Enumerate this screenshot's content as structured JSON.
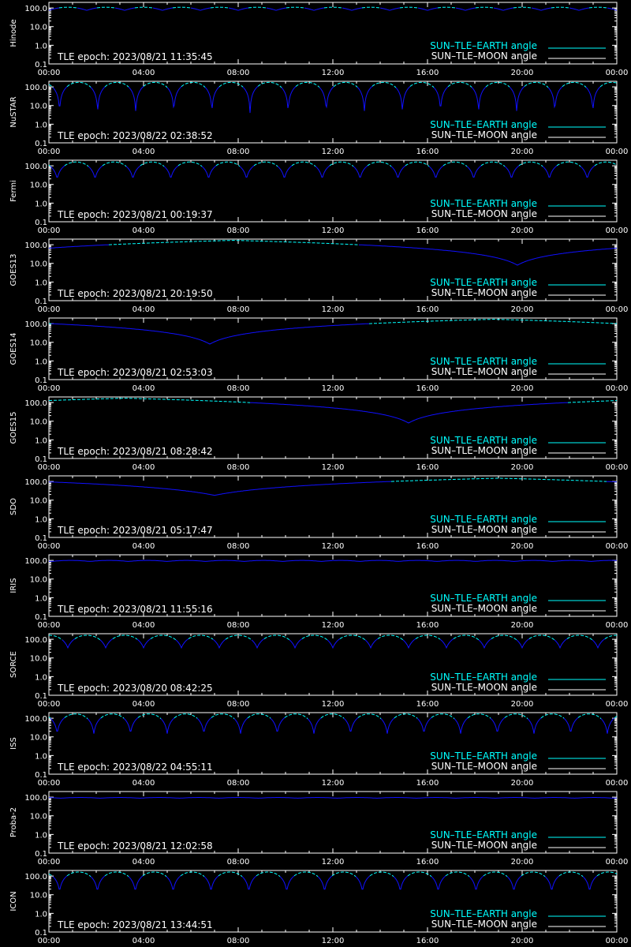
{
  "chart_data": [
    {
      "type": "line",
      "satellite": "Hinode",
      "epoch_text": "TLE epoch: 2023/08/21 11:35:45",
      "pattern": "periodic",
      "period_hours": 1.6,
      "phase_hours": 0.0,
      "min": 75,
      "max": 110,
      "xlabels": [
        "00:00",
        "04:00",
        "08:00",
        "12:00",
        "16:00",
        "20:00",
        "00:00"
      ],
      "yticks": [
        "100.0",
        "10.0",
        "1.0",
        "0.1"
      ],
      "legend": [
        "SUN–TLE–EARTH angle",
        "SUN–TLE–MOON angle"
      ]
    },
    {
      "type": "line",
      "satellite": "NuSTAR",
      "epoch_text": "TLE epoch: 2023/08/22 02:38:52",
      "pattern": "periodic",
      "period_hours": 1.61,
      "phase_hours": 0.45,
      "min": 4,
      "max": 175,
      "xlabels": [
        "00:00",
        "04:00",
        "08:00",
        "12:00",
        "16:00",
        "20:00",
        "00:00"
      ],
      "yticks": [
        "100.0",
        "10.0",
        "1.0",
        "0.1"
      ],
      "legend": [
        "SUN–TLE–EARTH angle",
        "SUN–TLE–MOON angle"
      ]
    },
    {
      "type": "line",
      "satellite": "Fermi",
      "epoch_text": "TLE epoch: 2023/08/21 00:19:37",
      "pattern": "periodic",
      "period_hours": 1.6,
      "phase_hours": 0.35,
      "min": 20,
      "max": 160,
      "xlabels": [
        "00:00",
        "04:00",
        "08:00",
        "12:00",
        "16:00",
        "20:00",
        "00:00"
      ],
      "yticks": [
        "100.0",
        "10.0",
        "1.0",
        "0.1"
      ],
      "legend": [
        "SUN–TLE–EARTH angle",
        "SUN–TLE–MOON angle"
      ]
    },
    {
      "type": "line",
      "satellite": "GOES13",
      "epoch_text": "TLE epoch: 2023/08/21 20:19:50",
      "pattern": "geo",
      "min_time_hours": 19.8,
      "min": 8,
      "max": 172,
      "xlabels": [
        "00:00",
        "04:00",
        "08:00",
        "12:00",
        "16:00",
        "20:00",
        "00:00"
      ],
      "yticks": [
        "100.0",
        "10.0",
        "1.0",
        "0.1"
      ],
      "legend": [
        "SUN–TLE–EARTH angle",
        "SUN–TLE–MOON angle"
      ]
    },
    {
      "type": "line",
      "satellite": "GOES14",
      "epoch_text": "TLE epoch: 2023/08/21 02:53:03",
      "pattern": "geo",
      "min_time_hours": 6.8,
      "min": 8,
      "max": 172,
      "xlabels": [
        "00:00",
        "04:00",
        "08:00",
        "12:00",
        "16:00",
        "20:00",
        "00:00"
      ],
      "yticks": [
        "100.0",
        "10.0",
        "1.0",
        "0.1"
      ],
      "legend": [
        "SUN–TLE–EARTH angle",
        "SUN–TLE–MOON angle"
      ]
    },
    {
      "type": "line",
      "satellite": "GOES15",
      "epoch_text": "TLE epoch: 2023/08/21 08:28:42",
      "pattern": "geo",
      "min_time_hours": 15.2,
      "min": 8,
      "max": 172,
      "xlabels": [
        "00:00",
        "04:00",
        "08:00",
        "12:00",
        "16:00",
        "20:00",
        "00:00"
      ],
      "yticks": [
        "100.0",
        "10.0",
        "1.0",
        "0.1"
      ],
      "legend": [
        "SUN–TLE–EARTH angle",
        "SUN–TLE–MOON angle"
      ]
    },
    {
      "type": "line",
      "satellite": "SDO",
      "epoch_text": "TLE epoch: 2023/08/21 05:17:47",
      "pattern": "geo",
      "min_time_hours": 7.0,
      "min": 18,
      "max": 150,
      "xlabels": [
        "00:00",
        "04:00",
        "08:00",
        "12:00",
        "16:00",
        "20:00",
        "00:00"
      ],
      "yticks": [
        "100.0",
        "10.0",
        "1.0",
        "0.1"
      ],
      "legend": [
        "SUN–TLE–EARTH angle",
        "SUN–TLE–MOON angle"
      ]
    },
    {
      "type": "line",
      "satellite": "IRIS",
      "epoch_text": "TLE epoch: 2023/08/21 11:55:16",
      "pattern": "periodic",
      "period_hours": 1.63,
      "phase_hours": 0.1,
      "min": 88,
      "max": 100,
      "xlabels": [
        "00:00",
        "04:00",
        "08:00",
        "12:00",
        "16:00",
        "20:00",
        "00:00"
      ],
      "yticks": [
        "100.0",
        "10.0",
        "1.0",
        "0.1"
      ],
      "legend": [
        "SUN–TLE–EARTH angle",
        "SUN–TLE–MOON angle"
      ]
    },
    {
      "type": "line",
      "satellite": "SORCE",
      "epoch_text": "TLE epoch: 2023/08/20 08:42:25",
      "pattern": "periodic",
      "period_hours": 1.6,
      "phase_hours": 0.8,
      "min": 35,
      "max": 165,
      "xlabels": [
        "00:00",
        "04:00",
        "08:00",
        "12:00",
        "16:00",
        "20:00",
        "00:00"
      ],
      "yticks": [
        "100.0",
        "10.0",
        "1.0",
        "0.1"
      ],
      "legend": [
        "SUN–TLE–EARTH angle",
        "SUN–TLE–MOON angle"
      ]
    },
    {
      "type": "line",
      "satellite": "ISS",
      "epoch_text": "TLE epoch: 2023/08/22 04:55:11",
      "pattern": "periodic",
      "period_hours": 1.55,
      "phase_hours": 0.35,
      "min": 15,
      "max": 170,
      "xlabels": [
        "00:00",
        "04:00",
        "08:00",
        "12:00",
        "16:00",
        "20:00",
        "00:00"
      ],
      "yticks": [
        "100.0",
        "10.0",
        "1.0",
        "0.1"
      ],
      "legend": [
        "SUN–TLE–EARTH angle",
        "SUN–TLE–MOON angle"
      ]
    },
    {
      "type": "line",
      "satellite": "Proba-2",
      "epoch_text": "TLE epoch: 2023/08/21 12:02:58",
      "pattern": "periodic",
      "period_hours": 1.67,
      "phase_hours": 0.5,
      "min": 88,
      "max": 96,
      "xlabels": [
        "00:00",
        "04:00",
        "08:00",
        "12:00",
        "16:00",
        "20:00",
        "00:00"
      ],
      "yticks": [
        "100.0",
        "10.0",
        "1.0",
        "0.1"
      ],
      "legend": [
        "SUN–TLE–EARTH angle",
        "SUN–TLE–MOON angle"
      ]
    },
    {
      "type": "line",
      "satellite": "ICON",
      "epoch_text": "TLE epoch: 2023/08/21 13:44:51",
      "pattern": "periodic",
      "period_hours": 1.6,
      "phase_hours": 0.45,
      "min": 15,
      "max": 165,
      "xlabels": [
        "00:00",
        "04:00",
        "08:00",
        "12:00",
        "16:00",
        "20:00",
        "00:00"
      ],
      "yticks": [
        "100.0",
        "10.0",
        "1.0",
        "0.1"
      ],
      "legend": [
        "SUN–TLE–EARTH angle",
        "SUN–TLE–MOON angle"
      ]
    }
  ],
  "colors": {
    "background": "#000000",
    "axes": "#ffffff",
    "earth_angle": "#00ffff",
    "earth_angle_dark": "#1010ff",
    "moon_angle": "#ffffff"
  },
  "scale": {
    "y": "log",
    "ymin": 0.1,
    "ymax": 200,
    "x_range_hours": [
      0,
      24
    ]
  }
}
